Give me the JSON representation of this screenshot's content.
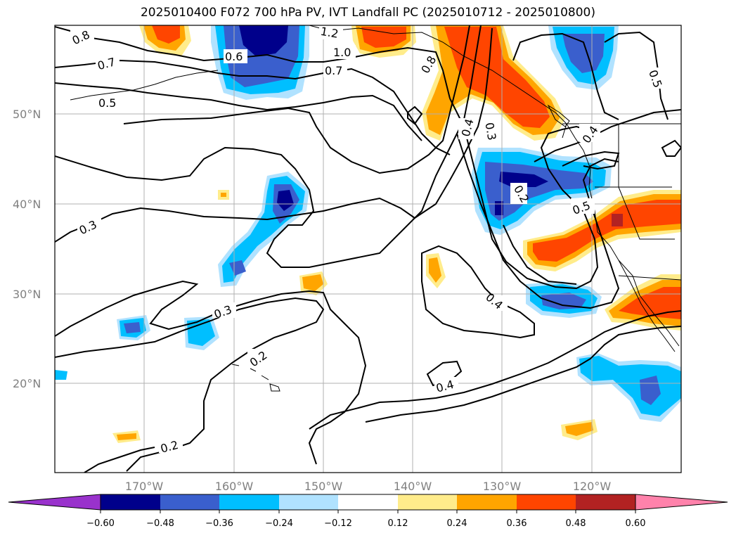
{
  "title": "2025010400 F072 700 hPa PV, IVT Landfall PC (2025010712 - 2025010800)",
  "latitudes": [
    {
      "label": "50°N",
      "lat": 50
    },
    {
      "label": "40°N",
      "lat": 40
    },
    {
      "label": "30°N",
      "lat": 30
    },
    {
      "label": "20°N",
      "lat": 20
    }
  ],
  "longitudes": [
    {
      "label": "170°W",
      "lon": -170
    },
    {
      "label": "160°W",
      "lon": -160
    },
    {
      "label": "150°W",
      "lon": -150
    },
    {
      "label": "140°W",
      "lon": -140
    },
    {
      "label": "130°W",
      "lon": -130
    },
    {
      "label": "120°W",
      "lon": -120
    }
  ],
  "colorbar": {
    "colors": [
      "#9932cc",
      "#00008b",
      "#3a5fcd",
      "#00bfff",
      "#b0e2ff",
      "#ffffff",
      "#ffec8b",
      "#ffa500",
      "#ff4500",
      "#b22222",
      "#ff82ab"
    ],
    "ticks": [
      "−0.60",
      "−0.48",
      "−0.36",
      "−0.24",
      "−0.12",
      "0.12",
      "0.24",
      "0.36",
      "0.48",
      "0.60"
    ]
  },
  "contour_labels": [
    "0.8",
    "0.7",
    "0.5",
    "0.6",
    "1.2",
    "1.0",
    "0.7",
    "0.8",
    "0.4",
    "0.3",
    "0.4",
    "0.2",
    "0.5",
    "0.3",
    "0.3",
    "0.2",
    "0.4",
    "0.4",
    "0.2",
    "0.5"
  ]
}
